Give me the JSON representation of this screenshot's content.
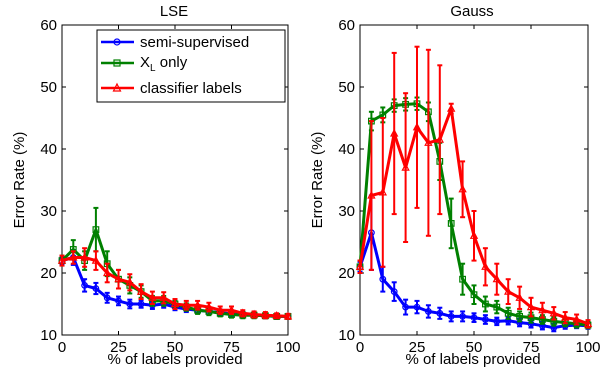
{
  "chart_data": [
    {
      "type": "line",
      "title": "LSE",
      "xlabel": "% of labels provided",
      "ylabel": "Error Rate (%)",
      "xlim": [
        0,
        100
      ],
      "ylim": [
        10,
        60
      ],
      "xticks": [
        0,
        25,
        50,
        75,
        100
      ],
      "yticks": [
        10,
        20,
        30,
        40,
        50,
        60
      ],
      "grid": false,
      "legend_position": "top-right",
      "x": [
        0,
        5,
        10,
        15,
        20,
        25,
        30,
        35,
        40,
        45,
        50,
        55,
        60,
        65,
        70,
        75,
        80,
        85,
        90,
        95,
        100
      ],
      "series": [
        {
          "name": "semi-supervised",
          "color": "#0000ff",
          "marker": "circle",
          "values": [
            22,
            22.5,
            18,
            17.5,
            16,
            15.5,
            15,
            15,
            14.8,
            15,
            14.5,
            14.2,
            14,
            13.8,
            13.6,
            13.4,
            13.3,
            13.2,
            13.1,
            13.0,
            13.0
          ],
          "errors": [
            0.6,
            1.2,
            1.0,
            0.9,
            0.8,
            0.7,
            0.7,
            0.6,
            0.6,
            0.6,
            0.5,
            0.5,
            0.5,
            0.5,
            0.5,
            0.5,
            0.4,
            0.4,
            0.4,
            0.4,
            0.4
          ]
        },
        {
          "name": "X_L only",
          "color": "#008000",
          "marker": "square",
          "values": [
            22,
            23.8,
            22,
            27,
            21.5,
            19,
            18,
            17,
            15.5,
            15.5,
            15,
            14.5,
            14,
            13.8,
            13.5,
            13.3,
            13.2,
            13.2,
            13.1,
            13.0,
            13.0
          ],
          "errors": [
            0.8,
            1.5,
            1.5,
            3.5,
            2.0,
            1.5,
            1.3,
            1.0,
            0.8,
            0.8,
            0.7,
            0.6,
            0.6,
            0.6,
            0.5,
            0.5,
            0.5,
            0.5,
            0.4,
            0.4,
            0.4
          ]
        },
        {
          "name": "classifier labels",
          "color": "#ff0000",
          "marker": "triangle",
          "values": [
            22,
            22.5,
            22.5,
            22,
            20,
            19,
            18.5,
            17,
            16,
            16,
            15,
            14.8,
            14.8,
            14.5,
            14,
            14,
            13.5,
            13.3,
            13.2,
            13.1,
            13.0
          ],
          "errors": [
            0.8,
            1.0,
            1.5,
            1.5,
            1.5,
            1.5,
            1.3,
            1.2,
            1.0,
            0.9,
            0.8,
            0.7,
            0.7,
            0.7,
            0.6,
            0.6,
            0.5,
            0.5,
            0.5,
            0.4,
            0.4
          ]
        }
      ]
    },
    {
      "type": "line",
      "title": "Gauss",
      "xlabel": "% of labels provided",
      "ylabel": "Error Rate (%)",
      "xlim": [
        0,
        100
      ],
      "ylim": [
        10,
        60
      ],
      "xticks": [
        0,
        25,
        50,
        75,
        100
      ],
      "yticks": [
        10,
        20,
        30,
        40,
        50,
        60
      ],
      "grid": false,
      "x": [
        0,
        5,
        10,
        15,
        20,
        25,
        30,
        35,
        40,
        45,
        50,
        55,
        60,
        65,
        70,
        75,
        80,
        85,
        90,
        95,
        100
      ],
      "series": [
        {
          "name": "semi-supervised",
          "color": "#0000ff",
          "marker": "circle",
          "values": [
            21,
            26.5,
            19,
            17,
            14.5,
            14.5,
            13.8,
            13.5,
            13,
            13,
            12.8,
            12.5,
            12.2,
            12.3,
            12,
            11.8,
            11.5,
            11.2,
            11.5,
            11.6,
            11.5
          ],
          "errors": [
            0.8,
            6.0,
            2.0,
            1.5,
            1.2,
            1.0,
            1.0,
            0.9,
            0.8,
            0.8,
            0.7,
            0.7,
            0.6,
            0.6,
            0.6,
            0.6,
            0.6,
            0.6,
            0.5,
            0.5,
            0.5
          ]
        },
        {
          "name": "X_L only",
          "color": "#008000",
          "marker": "square",
          "values": [
            21,
            44.5,
            45.5,
            47,
            47.2,
            47.3,
            46,
            38,
            28,
            19,
            16.5,
            15,
            14.5,
            13.5,
            13,
            12.8,
            12.5,
            12.2,
            12,
            11.8,
            11.6
          ],
          "errors": [
            1.0,
            1.5,
            1.2,
            1.0,
            1.0,
            1.0,
            1.5,
            3.0,
            4.0,
            2.5,
            1.5,
            1.2,
            1.0,
            0.9,
            0.8,
            0.8,
            0.7,
            0.7,
            0.6,
            0.6,
            0.5
          ]
        },
        {
          "name": "classifier labels",
          "color": "#ff0000",
          "marker": "triangle",
          "values": [
            21,
            32.5,
            33,
            42.5,
            37,
            43.5,
            41,
            41.5,
            46.5,
            33.5,
            26,
            21,
            19,
            17,
            16,
            14.5,
            14,
            13.5,
            12.8,
            12.5,
            11.8
          ],
          "errors": [
            1.0,
            12.0,
            12.0,
            13.0,
            12.0,
            13.0,
            15.0,
            12.0,
            0.8,
            4.5,
            4.0,
            3.0,
            2.5,
            2.0,
            1.8,
            1.5,
            1.2,
            1.0,
            0.9,
            0.8,
            0.6
          ]
        }
      ]
    }
  ]
}
